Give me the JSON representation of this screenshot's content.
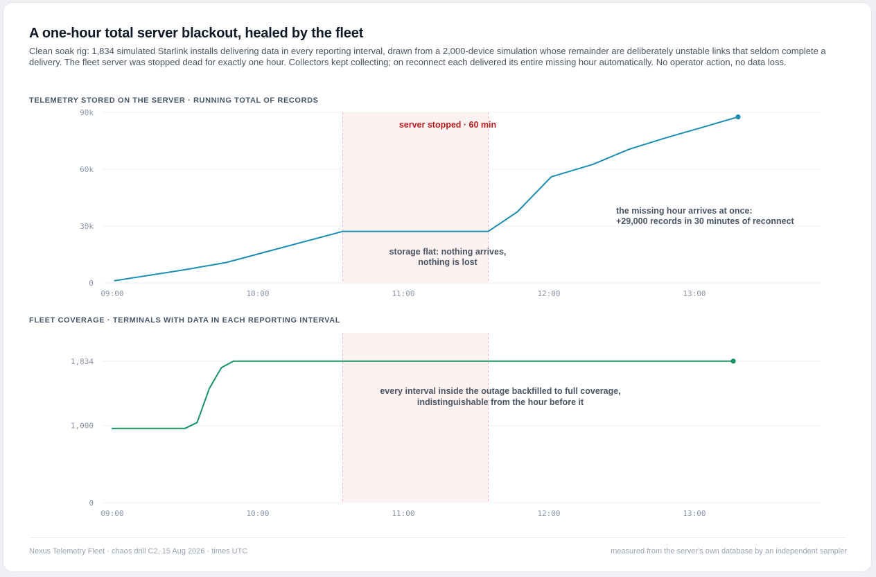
{
  "title": "A one-hour total server blackout, healed by the fleet",
  "subtitle": "Clean soak rig: 1,834 simulated Starlink installs delivering data in every reporting interval, drawn from a 2,000-device simulation whose remainder are deliberately unstable links that seldom complete a delivery. The fleet server was stopped dead for exactly one hour. Collectors kept collecting; on reconnect each delivered its entire missing hour automatically. No operator action, no data loss.",
  "colors": {
    "storage_line": "#1a8db3",
    "coverage_line": "#17925f",
    "outage_fill": "#fdf2f2",
    "outage_label": "#b91c1c"
  },
  "chart_data": [
    {
      "type": "line",
      "section_label": "TELEMETRY STORED ON THE SERVER · RUNNING TOTAL OF RECORDS",
      "title": "",
      "xlabel": "",
      "ylabel": "",
      "xlim": [
        "08:56",
        "13:52"
      ],
      "ylim": [
        0,
        90000
      ],
      "grid": true,
      "x_ticks": [
        "09:00",
        "10:00",
        "11:00",
        "12:00",
        "13:00"
      ],
      "y_ticks": [
        {
          "value": 0,
          "label": "0"
        },
        {
          "value": 30000,
          "label": "30k"
        },
        {
          "value": 60000,
          "label": "60k"
        },
        {
          "value": 90000,
          "label": "90k"
        }
      ],
      "outage": {
        "start": "10:35",
        "end": "11:35",
        "label": "server stopped · 60 min"
      },
      "series": [
        {
          "x": [
            "09:01",
            "09:30",
            "09:47",
            "10:35",
            "11:35",
            "11:47",
            "12:01",
            "12:18",
            "12:33",
            "12:48",
            "13:03",
            "13:18"
          ],
          "values": [
            1200,
            7000,
            10800,
            27200,
            27200,
            37500,
            56000,
            62500,
            70500,
            76500,
            82000,
            87600
          ]
        }
      ],
      "annotations": [
        {
          "text": [
            "storage flat: nothing arrives,",
            "nothing is lost"
          ]
        },
        {
          "text": [
            "the missing hour arrives at once:",
            "+29,000 records in 30 minutes of reconnect"
          ]
        }
      ]
    },
    {
      "type": "line",
      "section_label": "FLEET COVERAGE · TERMINALS WITH DATA IN EACH REPORTING INTERVAL",
      "title": "",
      "xlabel": "",
      "ylabel": "",
      "xlim": [
        "08:56",
        "13:52"
      ],
      "ylim": [
        0,
        2200
      ],
      "grid": true,
      "x_ticks": [
        "09:00",
        "10:00",
        "11:00",
        "12:00",
        "13:00"
      ],
      "y_ticks": [
        {
          "value": 0,
          "label": "0"
        },
        {
          "value": 1000,
          "label": "1,000"
        },
        {
          "value": 1834,
          "label": "1,834"
        }
      ],
      "outage": {
        "start": "10:35",
        "end": "11:35",
        "label": ""
      },
      "series": [
        {
          "x": [
            "09:00",
            "09:30",
            "09:35",
            "09:40",
            "09:45",
            "09:50",
            "13:16"
          ],
          "values": [
            963,
            963,
            1040,
            1480,
            1750,
            1834,
            1834
          ]
        }
      ],
      "annotations": [
        {
          "text": [
            "every interval inside the outage backfilled to full coverage,",
            "indistinguishable from the hour before it"
          ]
        }
      ]
    }
  ],
  "footer": {
    "left": "Nexus Telemetry Fleet · chaos drill C2, 15 Aug 2026 · times UTC",
    "right": "measured from the server's own database by an independent sampler"
  }
}
